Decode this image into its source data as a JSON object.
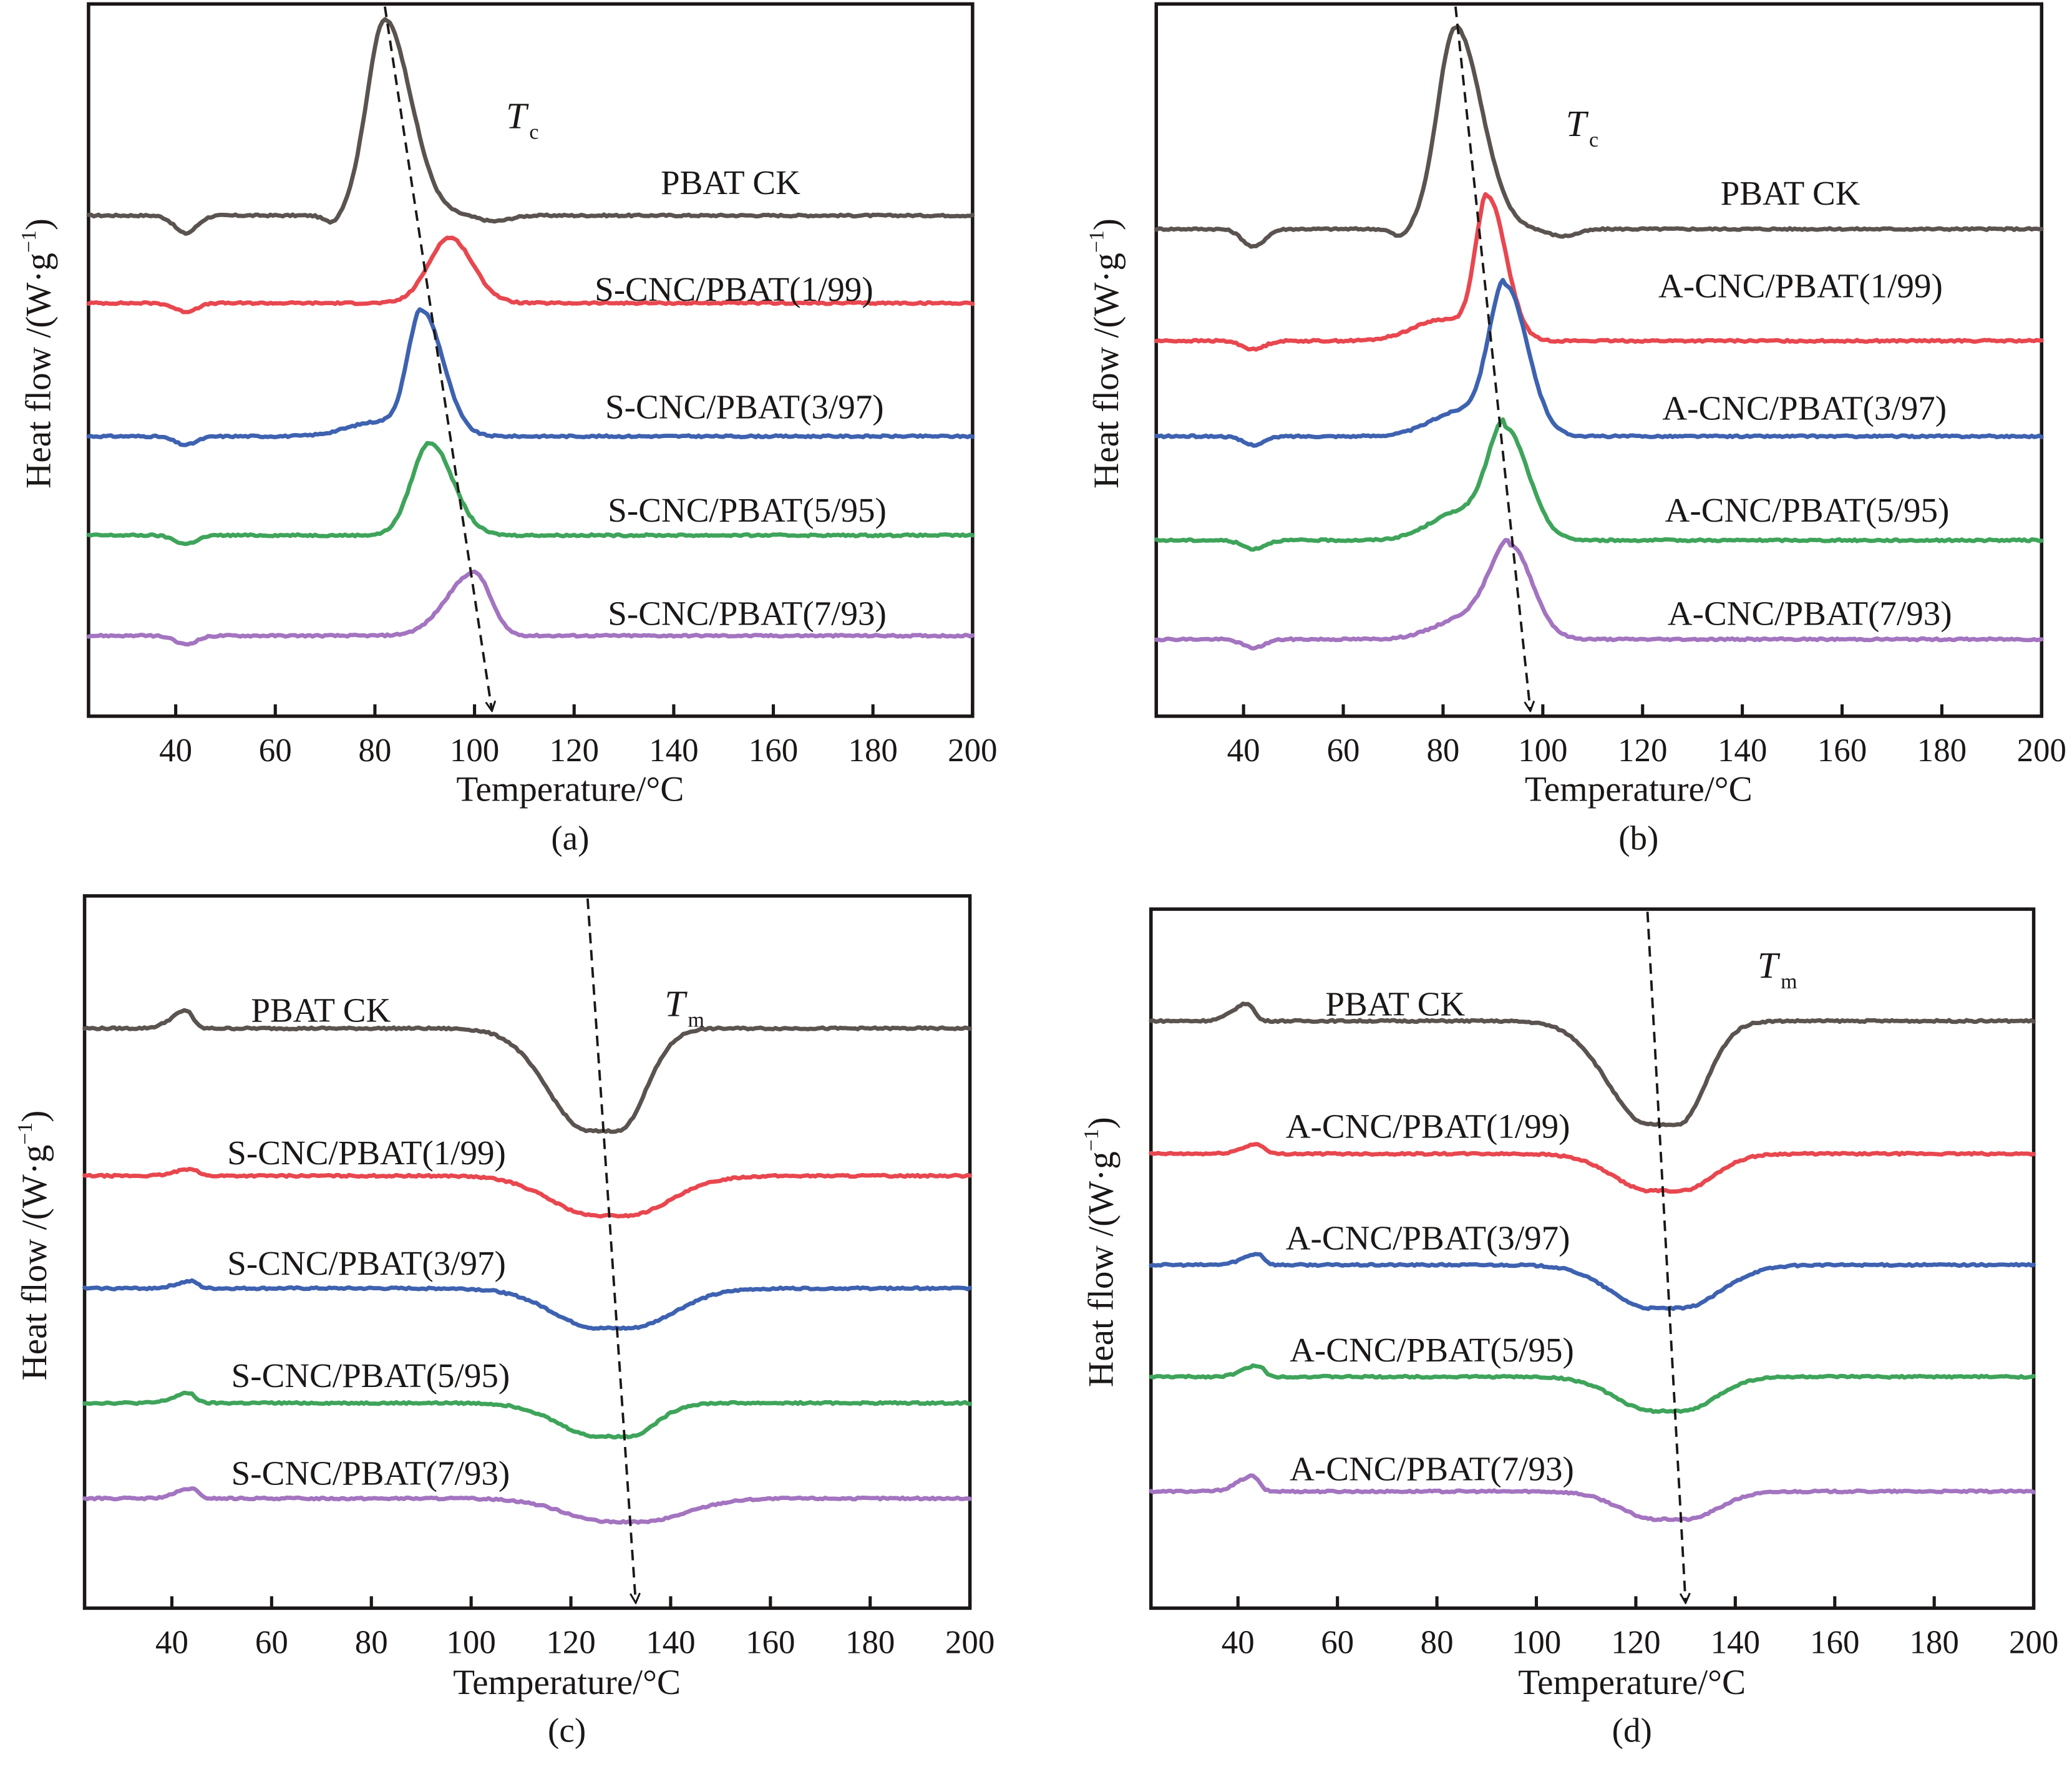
{
  "figure": {
    "colors": {
      "PBAT CK": "#5a5350",
      "1/99": "#e8474f",
      "3/97": "#3e62b0",
      "5/95": "#3fa45b",
      "7/93": "#a374c0"
    }
  },
  "chart_data": [
    {
      "panel": "(a)",
      "type": "line",
      "title": "",
      "xlabel": "Temperature/°C",
      "ylabel": "Heat flow /(W·g⁻¹)",
      "xlim": [
        22.5,
        200
      ],
      "xticks": [
        40,
        60,
        80,
        100,
        120,
        140,
        160,
        180,
        200
      ],
      "ylim": [
        0,
        1
      ],
      "y_units": "relative (a.u., curves vertically offset)",
      "grid": false,
      "annotation": {
        "symbol": "T",
        "subscript": "c",
        "trend_arrow": {
          "from_T": 82,
          "to_T": 103.5
        }
      },
      "series": [
        {
          "name": "PBAT CK",
          "color_key": "PBAT CK",
          "baseline": 0.703,
          "peak_T": 82.0,
          "peak_y": 0.978,
          "left_width": 3.6,
          "right_width": 5.2,
          "pre_dip_T": 71.5,
          "pre_dip": 0.012,
          "post_dip_T": 104,
          "post_dip": 0.008,
          "low_T_dip": 42,
          "low_T_dip_depth": 0.025,
          "label_y": 0.75
        },
        {
          "name": "S-CNC/PBAT(1/99)",
          "color_key": "1/99",
          "baseline": 0.58,
          "peak_T": 95.0,
          "peak_y": 0.672,
          "left_width": 4.2,
          "right_width": 4.6,
          "low_T_dip": 42,
          "low_T_dip_depth": 0.012,
          "label_y": 0.6
        },
        {
          "name": "S-CNC/PBAT(3/97)",
          "color_key": "3/97",
          "baseline": 0.393,
          "peak_T": 89.5,
          "peak_y": 0.568,
          "left_width": 2.8,
          "right_width": 4.2,
          "shoulder": 0.02,
          "low_T_dip": 42,
          "low_T_dip_depth": 0.012,
          "label_y": 0.435
        },
        {
          "name": "S-CNC/PBAT(5/95)",
          "color_key": "5/95",
          "baseline": 0.254,
          "peak_T": 91.0,
          "peak_y": 0.384,
          "left_width": 3.6,
          "right_width": 4.6,
          "low_T_dip": 42,
          "low_T_dip_depth": 0.012,
          "label_y": 0.29
        },
        {
          "name": "S-CNC/PBAT(7/93)",
          "color_key": "7/93",
          "baseline": 0.113,
          "peak_T": 100.0,
          "peak_y": 0.202,
          "left_width": 5.5,
          "right_width": 3.2,
          "low_T_dip": 42,
          "low_T_dip_depth": 0.012,
          "label_y": 0.145
        }
      ]
    },
    {
      "panel": "(b)",
      "type": "line",
      "title": "",
      "xlabel": "Temperature/°C",
      "ylabel": "Heat flow /(W·g⁻¹)",
      "xlim": [
        22.5,
        200
      ],
      "xticks": [
        40,
        60,
        80,
        100,
        120,
        140,
        160,
        180,
        200
      ],
      "ylim": [
        0,
        1
      ],
      "y_units": "relative (a.u., curves vertically offset)",
      "grid": false,
      "annotation": {
        "symbol": "T",
        "subscript": "c",
        "trend_arrow": {
          "from_T": 82.5,
          "to_T": 97.5
        }
      },
      "series": [
        {
          "name": "PBAT CK",
          "color_key": "PBAT CK",
          "baseline": 0.684,
          "peak_T": 82.5,
          "peak_y": 0.968,
          "left_width": 3.6,
          "right_width": 5.2,
          "pre_dip_T": 71.5,
          "pre_dip": 0.012,
          "post_dip_T": 104,
          "post_dip": 0.01,
          "low_T_dip": 42,
          "low_T_dip_depth": 0.025,
          "label_y": 0.735
        },
        {
          "name": "A-CNC/PBAT(1/99)",
          "color_key": "1/99",
          "baseline": 0.527,
          "peak_T": 89.0,
          "peak_y": 0.727,
          "left_width": 2.4,
          "right_width": 3.6,
          "shoulder": 0.03,
          "low_T_dip": 42,
          "low_T_dip_depth": 0.012,
          "label_y": 0.605
        },
        {
          "name": "A-CNC/PBAT(3/97)",
          "color_key": "3/97",
          "baseline": 0.393,
          "peak_T": 92.5,
          "peak_y": 0.603,
          "left_width": 3.2,
          "right_width": 4.4,
          "shoulder": 0.035,
          "low_T_dip": 42,
          "low_T_dip_depth": 0.012,
          "label_y": 0.433
        },
        {
          "name": "A-CNC/PBAT(5/95)",
          "color_key": "5/95",
          "baseline": 0.247,
          "peak_T": 92.5,
          "peak_y": 0.403,
          "left_width": 3.4,
          "right_width": 4.6,
          "shoulder": 0.04,
          "low_T_dip": 42,
          "low_T_dip_depth": 0.012,
          "label_y": 0.29
        },
        {
          "name": "A-CNC/PBAT(7/93)",
          "color_key": "7/93",
          "baseline": 0.108,
          "peak_T": 93.5,
          "peak_y": 0.238,
          "left_width": 4.0,
          "right_width": 4.4,
          "shoulder": 0.03,
          "low_T_dip": 42,
          "low_T_dip_depth": 0.012,
          "label_y": 0.145
        }
      ]
    },
    {
      "panel": "(c)",
      "type": "line",
      "title": "",
      "xlabel": "Temperature/°C",
      "ylabel": "Heat flow /(W·g⁻¹)",
      "xlim": [
        22.5,
        200
      ],
      "xticks": [
        40,
        60,
        80,
        100,
        120,
        140,
        160,
        180,
        200
      ],
      "ylim": [
        0,
        1
      ],
      "y_units": "relative (a.u., curves vertically offset)",
      "grid": false,
      "annotation": {
        "symbol": "T",
        "subscript": "m",
        "trend_arrow": {
          "from_T": 126,
          "to_T": 133
        }
      },
      "series": [
        {
          "name": "PBAT CK",
          "color_key": "PBAT CK",
          "baseline": 0.814,
          "peak_T": 126.5,
          "peak_y": 0.67,
          "left_width": 8.0,
          "right_width": 5.5,
          "low_T_bump": 43,
          "low_T_bump_height": 0.025,
          "label_y": 0.84
        },
        {
          "name": "S-CNC/PBAT(1/99)",
          "color_key": "1/99",
          "baseline": 0.607,
          "peak_T": 128.0,
          "peak_y": 0.551,
          "left_width": 9.0,
          "right_width": 9.0,
          "low_T_bump": 44,
          "low_T_bump_height": 0.01,
          "label_y": 0.64
        },
        {
          "name": "S-CNC/PBAT(3/97)",
          "color_key": "3/97",
          "baseline": 0.449,
          "peak_T": 128.5,
          "peak_y": 0.393,
          "left_width": 9.0,
          "right_width": 9.0,
          "low_T_bump": 44,
          "low_T_bump_height": 0.01,
          "label_y": 0.485
        },
        {
          "name": "S-CNC/PBAT(5/95)",
          "color_key": "5/95",
          "baseline": 0.288,
          "peak_T": 128.5,
          "peak_y": 0.241,
          "left_width": 8.0,
          "right_width": 5.5,
          "low_T_bump": 43.5,
          "low_T_bump_height": 0.014,
          "label_y": 0.327
        },
        {
          "name": "S-CNC/PBAT(7/93)",
          "color_key": "7/93",
          "baseline": 0.154,
          "peak_T": 131.0,
          "peak_y": 0.121,
          "left_width": 9.0,
          "right_width": 9.0,
          "low_T_bump": 44,
          "low_T_bump_height": 0.014,
          "label_y": 0.19
        }
      ]
    },
    {
      "panel": "(d)",
      "type": "line",
      "title": "",
      "xlabel": "Temperature/°C",
      "ylabel": "Heat flow /(W·g⁻¹)",
      "xlim": [
        22.5,
        200
      ],
      "xticks": [
        40,
        60,
        80,
        100,
        120,
        140,
        160,
        180,
        200
      ],
      "ylim": [
        0,
        1
      ],
      "y_units": "relative (a.u., curves vertically offset)",
      "grid": false,
      "annotation": {
        "symbol": "T",
        "subscript": "m",
        "trend_arrow": {
          "from_T": 125,
          "to_T": 130
        }
      },
      "series": [
        {
          "name": "PBAT CK",
          "color_key": "PBAT CK",
          "baseline": 0.84,
          "peak_T": 125.5,
          "peak_y": 0.692,
          "left_width": 8.0,
          "right_width": 5.5,
          "low_T_bump": 42,
          "low_T_bump_height": 0.025,
          "label_y": 0.865
        },
        {
          "name": "A-CNC/PBAT(1/99)",
          "color_key": "1/99",
          "baseline": 0.65,
          "peak_T": 126.0,
          "peak_y": 0.597,
          "left_width": 7.5,
          "right_width": 6.5,
          "low_T_bump": 44,
          "low_T_bump_height": 0.014,
          "label_y": 0.69
        },
        {
          "name": "A-CNC/PBAT(3/97)",
          "color_key": "3/97",
          "baseline": 0.491,
          "peak_T": 126.0,
          "peak_y": 0.429,
          "left_width": 8.0,
          "right_width": 8.0,
          "low_T_bump": 44,
          "low_T_bump_height": 0.016,
          "label_y": 0.53
        },
        {
          "name": "A-CNC/PBAT(5/95)",
          "color_key": "5/95",
          "baseline": 0.331,
          "peak_T": 126.5,
          "peak_y": 0.282,
          "left_width": 7.5,
          "right_width": 6.5,
          "low_T_bump": 44,
          "low_T_bump_height": 0.016,
          "label_y": 0.37
        },
        {
          "name": "A-CNC/PBAT(7/93)",
          "color_key": "7/93",
          "baseline": 0.167,
          "peak_T": 127.0,
          "peak_y": 0.127,
          "left_width": 7.0,
          "right_width": 6.5,
          "low_T_bump": 43,
          "low_T_bump_height": 0.022,
          "label_y": 0.2
        }
      ]
    }
  ],
  "panels": [
    {
      "caption": "(a)",
      "xlabel": "Temperature/°C",
      "ylabel_main": "Heat flow /(W·g",
      "ylabel_sup": "−1",
      "ylabel_close": ")",
      "annot_T": "T",
      "annot_sub": "c",
      "series_labels": [
        "PBAT CK",
        "S-CNC/PBAT(1/99)",
        "S-CNC/PBAT(3/97)",
        "S-CNC/PBAT(5/95)",
        "S-CNC/PBAT(7/93)"
      ],
      "xtick_labels": [
        "40",
        "60",
        "80",
        "100",
        "120",
        "140",
        "160",
        "180",
        "200"
      ]
    },
    {
      "caption": "(b)",
      "xlabel": "Temperature/°C",
      "ylabel_main": "Heat flow /(W·g",
      "ylabel_sup": "−1",
      "ylabel_close": ")",
      "annot_T": "T",
      "annot_sub": "c",
      "series_labels": [
        "PBAT CK",
        "A-CNC/PBAT(1/99)",
        "A-CNC/PBAT(3/97)",
        "A-CNC/PBAT(5/95)",
        "A-CNC/PBAT(7/93)"
      ],
      "xtick_labels": [
        "40",
        "60",
        "80",
        "100",
        "120",
        "140",
        "160",
        "180",
        "200"
      ]
    },
    {
      "caption": "(c)",
      "xlabel": "Temperature/°C",
      "ylabel_main": "Heat flow /(W·g",
      "ylabel_sup": "−1",
      "ylabel_close": ")",
      "annot_T": "T",
      "annot_sub": "m",
      "series_labels": [
        "PBAT CK",
        "S-CNC/PBAT(1/99)",
        "S-CNC/PBAT(3/97)",
        "S-CNC/PBAT(5/95)",
        "S-CNC/PBAT(7/93)"
      ],
      "xtick_labels": [
        "40",
        "60",
        "80",
        "100",
        "120",
        "140",
        "160",
        "180",
        "200"
      ]
    },
    {
      "caption": "(d)",
      "xlabel": "Temperature/°C",
      "ylabel_main": "Heat flow /(W·g",
      "ylabel_sup": "−1",
      "ylabel_close": ")",
      "annot_T": "T",
      "annot_sub": "m",
      "series_labels": [
        "PBAT CK",
        "A-CNC/PBAT(1/99)",
        "A-CNC/PBAT(3/97)",
        "A-CNC/PBAT(5/95)",
        "A-CNC/PBAT(7/93)"
      ],
      "xtick_labels": [
        "40",
        "60",
        "80",
        "100",
        "120",
        "140",
        "160",
        "180",
        "200"
      ]
    }
  ]
}
